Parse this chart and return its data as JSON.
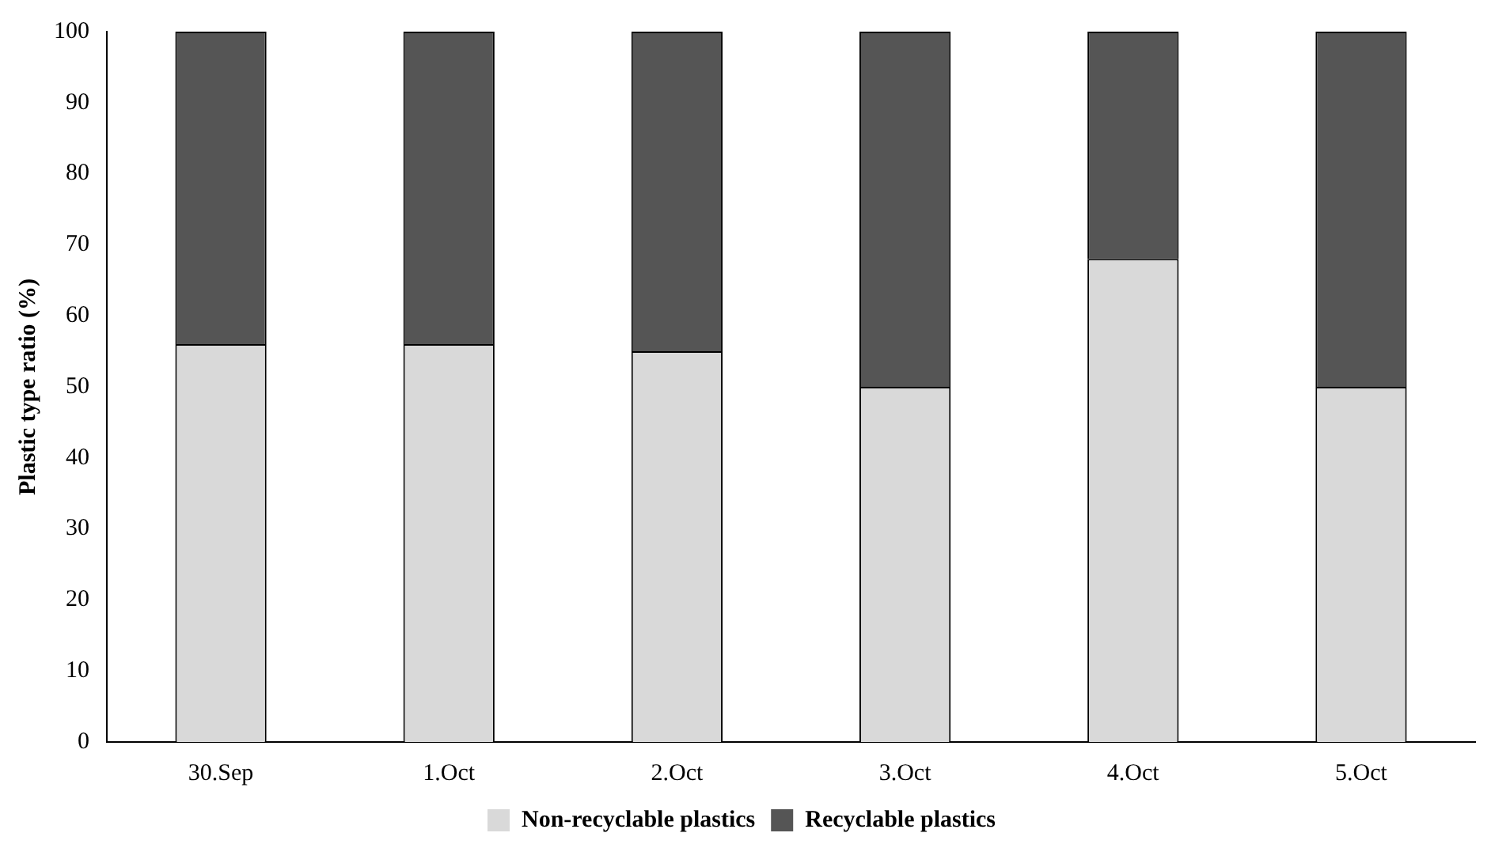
{
  "chart_data": {
    "type": "bar",
    "stacked": true,
    "ylabel": "Plastic type ratio (%)",
    "categories": [
      "30.Sep",
      "1.Oct",
      "2.Oct",
      "3.Oct",
      "4.Oct",
      "5.Oct"
    ],
    "series": [
      {
        "name": "Non-recyclable plastics",
        "color": "#d9d9d9",
        "values": [
          56,
          56,
          55,
          50,
          68,
          50
        ]
      },
      {
        "name": "Recyclable plastics",
        "color": "#555555",
        "values": [
          44,
          44,
          45,
          50,
          32,
          50
        ]
      }
    ],
    "ylim": [
      0,
      100
    ],
    "yticks": [
      0,
      10,
      20,
      30,
      40,
      50,
      60,
      70,
      80,
      90,
      100
    ],
    "grid": false,
    "legend": "bottom"
  }
}
